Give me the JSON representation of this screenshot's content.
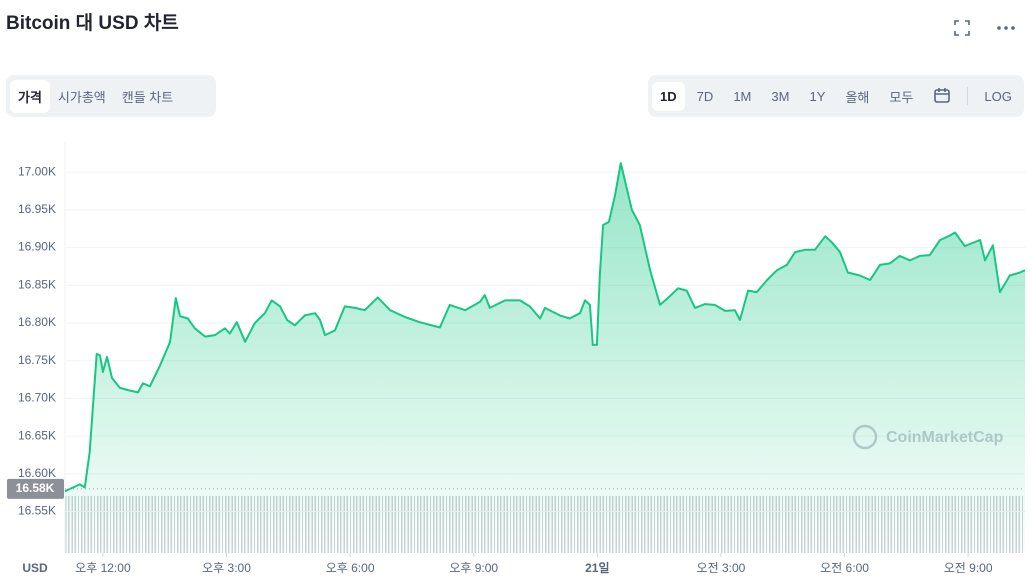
{
  "chart_data": {
    "type": "line",
    "title": "Bitcoin 대 USD 차트",
    "y_axis_label": "USD",
    "watermark": "CoinMarketCap",
    "color": "#16c784",
    "grid": true,
    "baseline": {
      "value": 16580,
      "label": "16.58K"
    },
    "xlim": [
      11.08,
      34.38
    ],
    "xticks": [
      {
        "value": 12,
        "label": "오후 12:00"
      },
      {
        "value": 15,
        "label": "오후 3:00"
      },
      {
        "value": 18,
        "label": "오후 6:00"
      },
      {
        "value": 21,
        "label": "오후 9:00"
      },
      {
        "value": 24,
        "label": "21일"
      },
      {
        "value": 27,
        "label": "오전 3:00"
      },
      {
        "value": 30,
        "label": "오전 6:00"
      },
      {
        "value": 33,
        "label": "오전 9:00"
      }
    ],
    "ylim": [
      16495,
      17040
    ],
    "yticks": [
      {
        "value": 16550,
        "label": "16.55K"
      },
      {
        "value": 16600,
        "label": "16.60K"
      },
      {
        "value": 16650,
        "label": "16.65K"
      },
      {
        "value": 16700,
        "label": "16.70K"
      },
      {
        "value": 16750,
        "label": "16.75K"
      },
      {
        "value": 16800,
        "label": "16.80K"
      },
      {
        "value": 16850,
        "label": "16.85K"
      },
      {
        "value": 16900,
        "label": "16.90K"
      },
      {
        "value": 16950,
        "label": "16.95K"
      },
      {
        "value": 17000,
        "label": "17.00K"
      }
    ],
    "x": [
      11.08,
      11.44,
      11.56,
      11.68,
      11.85,
      11.93,
      12.0,
      12.1,
      12.22,
      12.41,
      12.61,
      12.85,
      12.97,
      13.14,
      13.38,
      13.63,
      13.77,
      13.87,
      14.06,
      14.23,
      14.48,
      14.72,
      14.96,
      15.08,
      15.25,
      15.45,
      15.69,
      15.93,
      16.1,
      16.3,
      16.47,
      16.66,
      16.9,
      17.15,
      17.27,
      17.39,
      17.63,
      17.87,
      18.12,
      18.36,
      18.67,
      18.97,
      19.33,
      19.69,
      20.18,
      20.42,
      20.79,
      21.15,
      21.27,
      21.39,
      21.76,
      22.12,
      22.36,
      22.61,
      22.73,
      23.09,
      23.33,
      23.58,
      23.7,
      23.82,
      23.89,
      23.99,
      24.06,
      24.14,
      24.28,
      24.43,
      24.57,
      24.67,
      24.84,
      25.03,
      25.28,
      25.52,
      25.71,
      25.96,
      26.17,
      26.37,
      26.61,
      26.85,
      27.1,
      27.34,
      27.46,
      27.66,
      27.87,
      28.12,
      28.36,
      28.6,
      28.8,
      29.04,
      29.28,
      29.53,
      29.69,
      29.89,
      30.08,
      30.37,
      30.62,
      30.86,
      31.1,
      31.34,
      31.59,
      31.83,
      32.07,
      32.32,
      32.56,
      32.68,
      32.92,
      33.29,
      33.41,
      33.6,
      33.77,
      34.01,
      34.26,
      34.38
    ],
    "values": [
      16577,
      16586,
      16582,
      16629,
      16759,
      16757,
      16735,
      16755,
      16727,
      16714,
      16711,
      16708,
      16720,
      16716,
      16743,
      16775,
      16833,
      16809,
      16806,
      16793,
      16782,
      16784,
      16793,
      16786,
      16801,
      16775,
      16800,
      16813,
      16830,
      16822,
      16804,
      16797,
      16810,
      16813,
      16804,
      16784,
      16790,
      16822,
      16820,
      16817,
      16834,
      16817,
      16808,
      16801,
      16794,
      16824,
      16817,
      16828,
      16837,
      16820,
      16830,
      16830,
      16822,
      16806,
      16820,
      16810,
      16806,
      16813,
      16830,
      16824,
      16771,
      16771,
      16863,
      16930,
      16934,
      16969,
      17012,
      16989,
      16950,
      16930,
      16870,
      16824,
      16833,
      16846,
      16843,
      16820,
      16825,
      16824,
      16816,
      16817,
      16804,
      16843,
      16841,
      16857,
      16870,
      16877,
      16894,
      16897,
      16897,
      16915,
      16907,
      16894,
      16867,
      16863,
      16857,
      16877,
      16879,
      16889,
      16883,
      16889,
      16890,
      16910,
      16916,
      16920,
      16902,
      16910,
      16883,
      16903,
      16841,
      16863,
      16867,
      16870
    ]
  },
  "tabs": [
    "가격",
    "시가총액",
    "캔들 차트"
  ],
  "ranges": [
    "1D",
    "7D",
    "1M",
    "3M",
    "1Y",
    "올해",
    "모두"
  ],
  "log": "LOG"
}
